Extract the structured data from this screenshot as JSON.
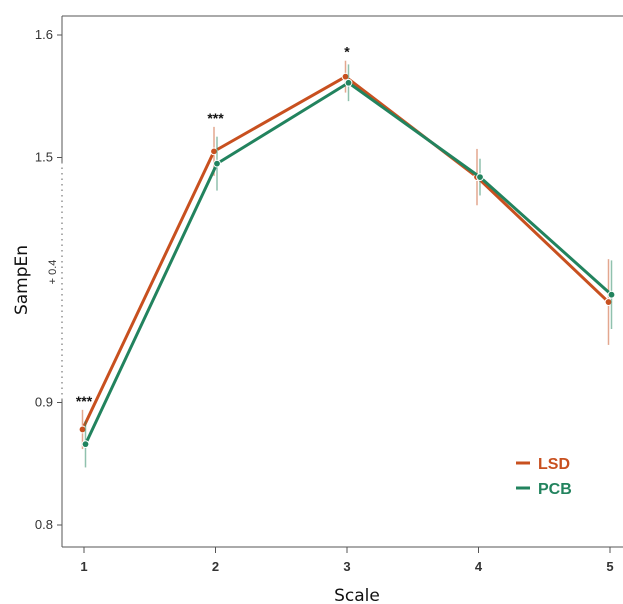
{
  "chart_data": {
    "type": "line",
    "title": "",
    "xlabel": "Scale",
    "ylabel": "SampEn",
    "axis_break_label": "+ 0.4",
    "x": [
      1,
      2,
      3,
      4,
      5
    ],
    "x_tick_labels": [
      "1",
      "2",
      "3",
      "4",
      "5"
    ],
    "y_tick_labels": [
      "0.8",
      "0.9",
      "1.5",
      "1.6"
    ],
    "display_ylim": [
      0.8,
      1.2
    ],
    "axis_break": "y-axis broken between 0.9 and 1.5 (+0.4 offset)",
    "grid": false,
    "legend_position": "bottom-right",
    "significance": [
      "***",
      "***",
      "*",
      "",
      ""
    ],
    "series": [
      {
        "name": "LSD",
        "color": "#c8501f",
        "values": [
          0.878,
          1.505,
          1.566,
          1.484,
          1.382
        ],
        "error": [
          0.016,
          0.02,
          0.013,
          0.023,
          0.035
        ]
      },
      {
        "name": "PCB",
        "color": "#22835e",
        "values": [
          0.866,
          1.495,
          1.561,
          1.484,
          1.388
        ],
        "error": [
          0.019,
          0.022,
          0.015,
          0.015,
          0.028
        ]
      }
    ]
  }
}
